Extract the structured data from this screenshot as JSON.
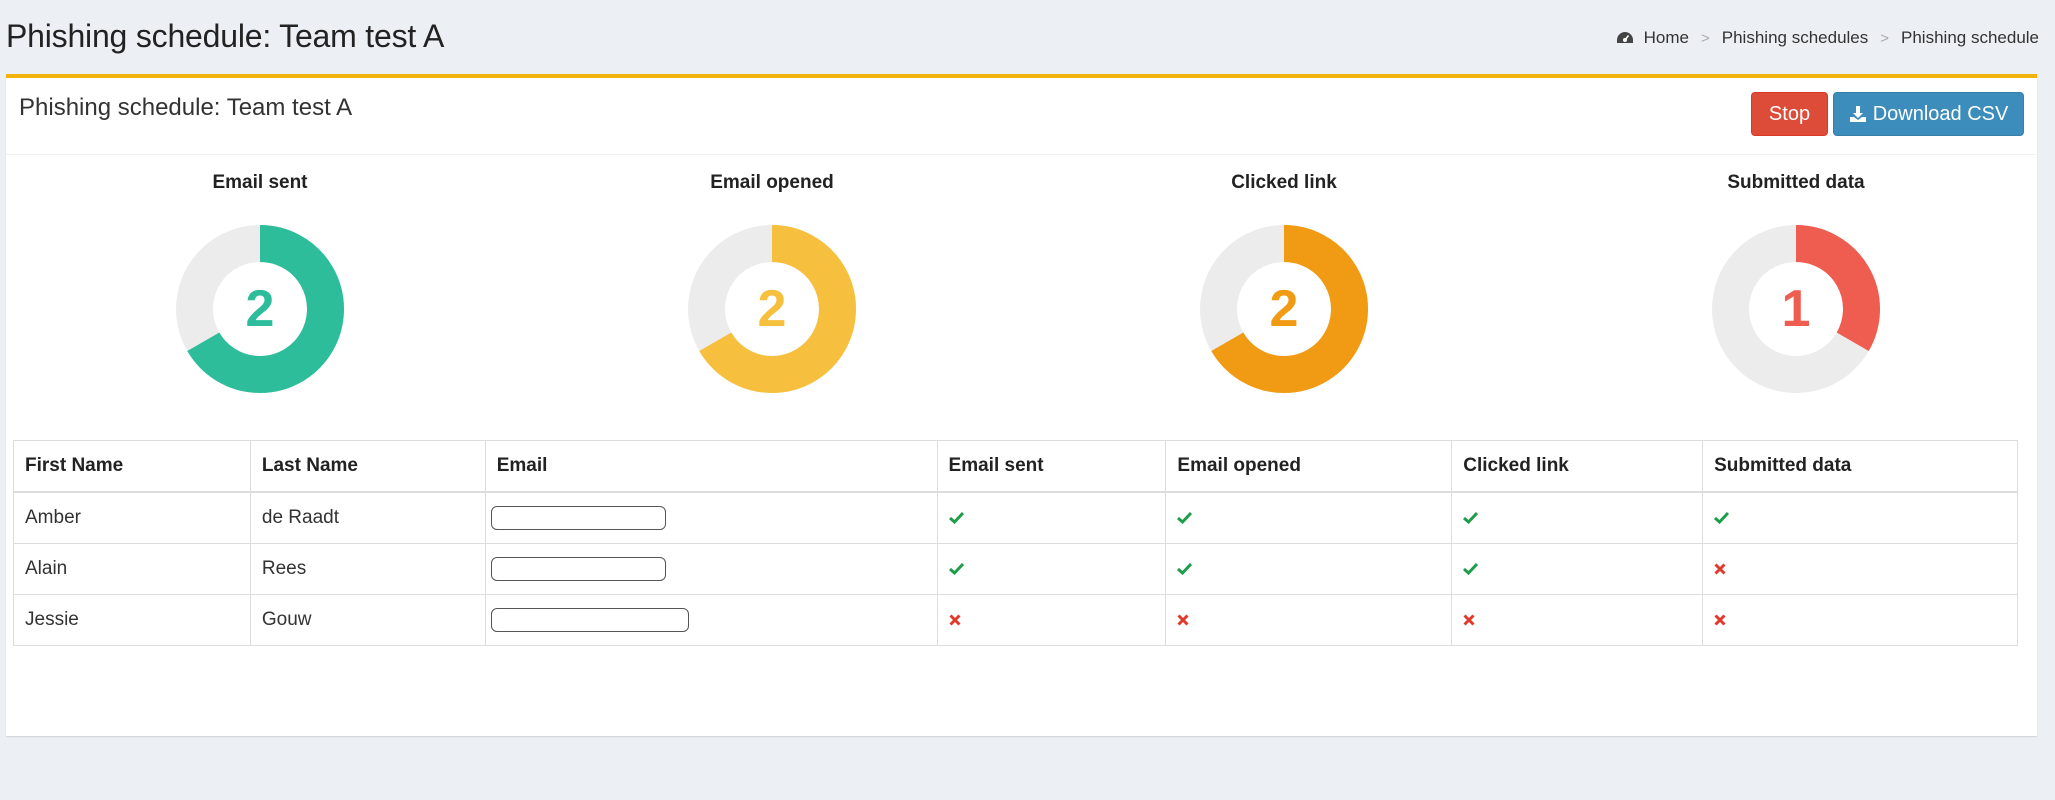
{
  "header": {
    "title": "Phishing schedule: Team test A",
    "breadcrumb": [
      "Home",
      "Phishing schedules",
      "Phishing schedule"
    ]
  },
  "box": {
    "title": "Phishing schedule: Team test A",
    "stop_label": "Stop",
    "download_label": "Download CSV"
  },
  "colors": {
    "accent": "#f3b20b",
    "sent": "#2ebd9b",
    "opened": "#f7bf3e",
    "clicked": "#f19b14",
    "submitted": "#ef5c50",
    "ring_bg": "#ececec",
    "check": "#1e9e4a",
    "cross": "#e03a2c"
  },
  "chart_data": [
    {
      "type": "pie",
      "title": "Email sent",
      "value": 2,
      "total": 3,
      "color": "#2ebd9b"
    },
    {
      "type": "pie",
      "title": "Email opened",
      "value": 2,
      "total": 3,
      "color": "#f7bf3e"
    },
    {
      "type": "pie",
      "title": "Clicked link",
      "value": 2,
      "total": 3,
      "color": "#f19b14"
    },
    {
      "type": "pie",
      "title": "Submitted data",
      "value": 1,
      "total": 3,
      "color": "#ef5c50"
    }
  ],
  "table": {
    "columns": [
      "First Name",
      "Last Name",
      "Email",
      "Email sent",
      "Email opened",
      "Clicked link",
      "Submitted data"
    ],
    "rows": [
      {
        "first": "Amber",
        "last": "de Raadt",
        "sent": true,
        "opened": true,
        "clicked": true,
        "submitted": true
      },
      {
        "first": "Alain",
        "last": "Rees",
        "sent": true,
        "opened": true,
        "clicked": true,
        "submitted": false
      },
      {
        "first": "Jessie",
        "last": "Gouw",
        "sent": false,
        "opened": false,
        "clicked": false,
        "submitted": false
      }
    ]
  },
  "icons": {
    "home": "dashboard-icon",
    "download": "download-icon",
    "yes": "check-icon",
    "no": "cross-icon"
  }
}
